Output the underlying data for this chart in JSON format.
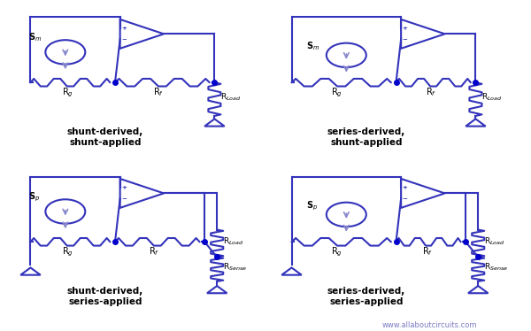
{
  "bg_color": "#ffffff",
  "line_color": "#3333bb",
  "line_color_light": "#8888cc",
  "dot_color": "#0000cc",
  "text_color": "#000000",
  "title_color": "#000000",
  "panels": [
    {
      "label": "shunt-derived,\nshunt-applied",
      "source": "Sm",
      "source_type": "shunt",
      "output_type": "shunt"
    },
    {
      "label": "series-derived,\nshunt-applied",
      "source": "Sm",
      "source_type": "series",
      "output_type": "shunt"
    },
    {
      "label": "shunt-derived,\nseries-applied",
      "source": "Sp",
      "source_type": "shunt",
      "output_type": "series"
    },
    {
      "label": "series-derived,\nseries-applied",
      "source": "Sp",
      "source_type": "series",
      "output_type": "series"
    }
  ],
  "watermark": "www.allaboutcircuits.com"
}
